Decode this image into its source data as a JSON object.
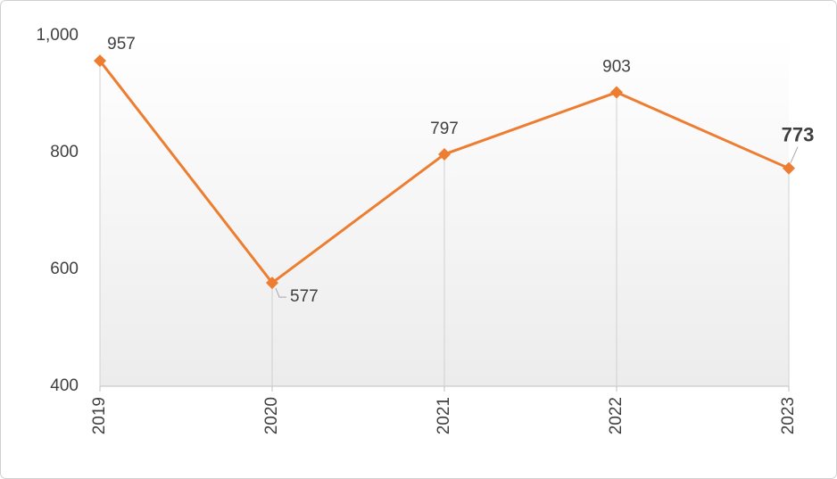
{
  "chart_data": {
    "type": "line",
    "categories": [
      "2019",
      "2020",
      "2021",
      "2022",
      "2023"
    ],
    "series": [
      {
        "color": "#ed7d31",
        "values": [
          957,
          577,
          797,
          903,
          773
        ]
      }
    ],
    "ylim": [
      400,
      1000
    ],
    "yticks": [
      400,
      600,
      800,
      {
        "value": 1000,
        "label": "1,000"
      }
    ],
    "grid": false
  }
}
